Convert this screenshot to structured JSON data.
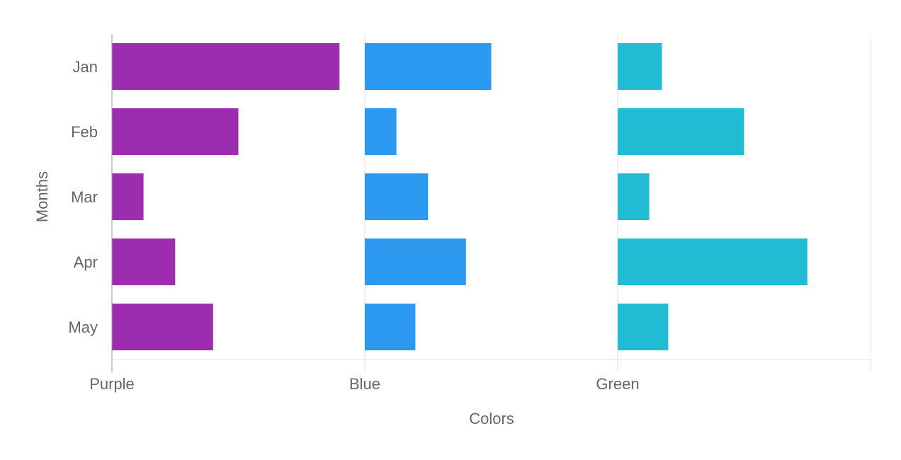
{
  "chart_data": {
    "type": "bar",
    "orientation": "horizontal",
    "layout": "small-multiples",
    "title": "",
    "xlabel": "Colors",
    "ylabel": "Months",
    "categories": [
      "Jan",
      "Feb",
      "Mar",
      "Apr",
      "May"
    ],
    "series": [
      {
        "name": "Purple",
        "color": "#9C2DAF",
        "values": [
          9,
          5,
          1.25,
          2.5,
          4
        ]
      },
      {
        "name": "Blue",
        "color": "#2B99EF",
        "values": [
          5,
          1.25,
          2.5,
          4,
          2
        ]
      },
      {
        "name": "Green",
        "color": "#21BCD4",
        "values": [
          1.75,
          5,
          1.25,
          7.5,
          2
        ]
      }
    ],
    "panel_max": 10,
    "grid": true
  }
}
